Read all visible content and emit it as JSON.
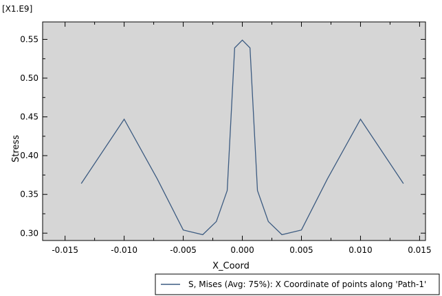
{
  "chart_data": {
    "type": "line",
    "title": "",
    "xlabel": "X_Coord",
    "ylabel": "Stress",
    "y_scale_label": "[X1.E9]",
    "xlim": [
      -0.0169,
      0.0155
    ],
    "ylim": [
      0.2905,
      0.5725
    ],
    "x_ticks": [
      -0.015,
      -0.01,
      -0.005,
      0.0,
      0.005,
      0.01,
      0.015
    ],
    "x_tick_labels": [
      "-0.015",
      "-0.010",
      "-0.005",
      "0.000",
      "0.005",
      "0.010",
      "0.015"
    ],
    "y_ticks": [
      0.3,
      0.35,
      0.4,
      0.45,
      0.5,
      0.55
    ],
    "y_tick_labels": [
      "0.30",
      "0.35",
      "0.40",
      "0.45",
      "0.50",
      "0.55"
    ],
    "grid": false,
    "legend_position": "bottom-right",
    "series": [
      {
        "name": "S, Mises (Avg: 75%): X Coordinate of points along 'Path-1'",
        "color": "#3b5a80",
        "x": [
          -0.01363,
          -0.01,
          -0.0072,
          -0.005,
          -0.00335,
          -0.0022,
          -0.00128,
          -0.00065,
          0.0,
          0.00065,
          0.00128,
          0.0022,
          0.00335,
          0.005,
          0.0072,
          0.01,
          0.01363
        ],
        "y": [
          0.364,
          0.447,
          0.37,
          0.304,
          0.298,
          0.315,
          0.355,
          0.539,
          0.549,
          0.539,
          0.355,
          0.315,
          0.298,
          0.304,
          0.37,
          0.447,
          0.364
        ]
      }
    ]
  }
}
